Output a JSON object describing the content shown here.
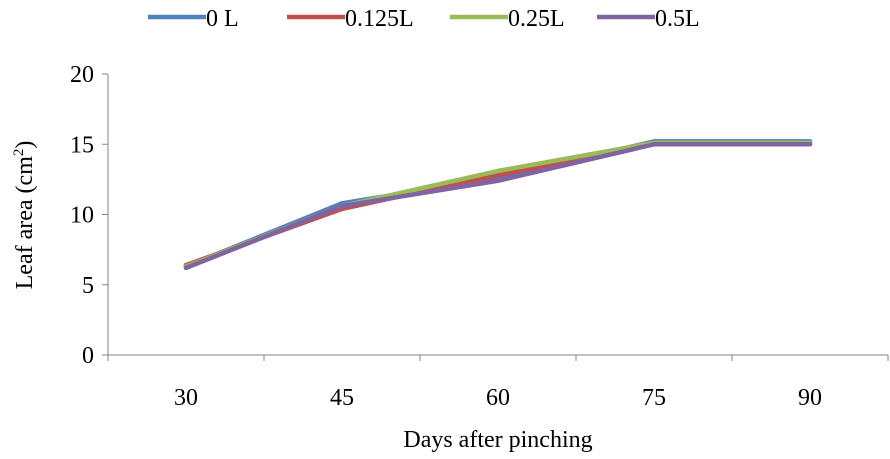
{
  "chart_data": {
    "type": "line",
    "title": "",
    "xlabel": "Days after pinching",
    "ylabel_main": "Leaf  area (cm",
    "ylabel_sup": "2",
    "ylabel_close": ")",
    "categories": [
      "30",
      "45",
      "60",
      "75",
      "90"
    ],
    "ylim": [
      0,
      20
    ],
    "yticks": [
      "0",
      "5",
      "10",
      "15",
      "20"
    ],
    "grid": false,
    "legend_position": "top",
    "series": [
      {
        "name": "0 L",
        "color": "#4F81BD",
        "values": [
          6.3,
          10.8,
          12.6,
          15.2,
          15.2
        ]
      },
      {
        "name": "0.125L",
        "color": "#C0504D",
        "values": [
          6.4,
          10.4,
          12.8,
          15.1,
          15.1
        ]
      },
      {
        "name": "0.25L",
        "color": "#9BBB59",
        "values": [
          6.3,
          10.6,
          13.1,
          15.1,
          15.1
        ]
      },
      {
        "name": "0.5L",
        "color": "#8064A2",
        "values": [
          6.2,
          10.6,
          12.4,
          15.0,
          15.0
        ]
      }
    ]
  }
}
